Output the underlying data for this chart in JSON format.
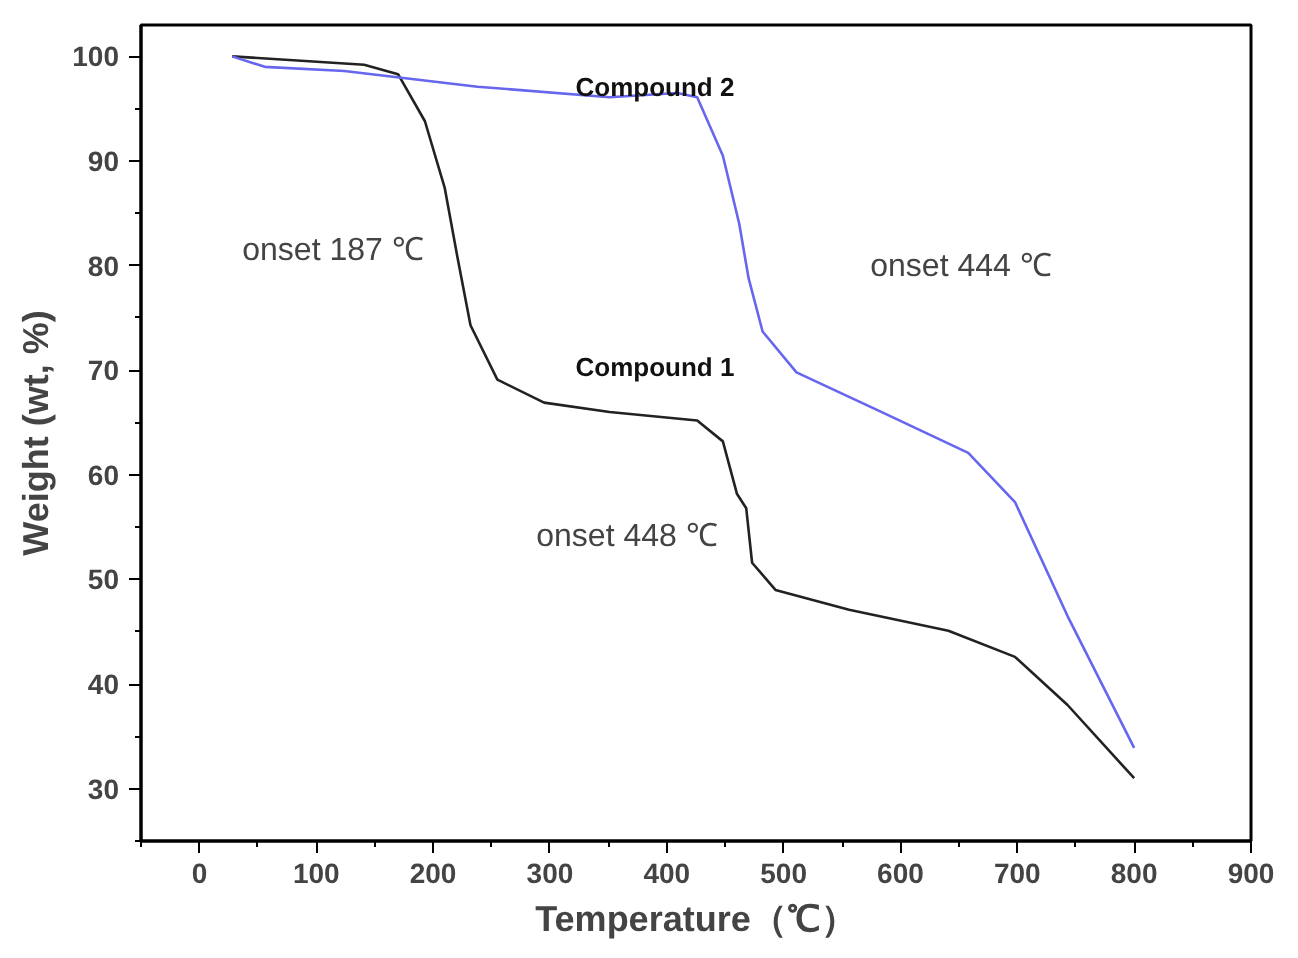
{
  "chart_data": {
    "type": "line",
    "xlabel": "Temperature（℃）",
    "ylabel": "Weight (wt, %)",
    "xlim": [
      -50,
      900
    ],
    "xticks": [
      0,
      100,
      200,
      300,
      400,
      500,
      600,
      700,
      800,
      900
    ],
    "ylim": [
      25,
      103
    ],
    "yticks": [
      30,
      40,
      50,
      60,
      70,
      80,
      90,
      100
    ],
    "grid": false,
    "marker": "none",
    "line_style": "solid",
    "series": [
      {
        "name": "Compound 1",
        "color": "#222222",
        "x": [
          28,
          141,
          170,
          193,
          210,
          221,
          232,
          255,
          295,
          351,
          426,
          448,
          460,
          468,
          473,
          493,
          556,
          641,
          698,
          743,
          800
        ],
        "values": [
          100,
          99.2,
          98.3,
          93.8,
          87.4,
          80.7,
          74.3,
          69.1,
          66.9,
          66,
          65.2,
          63.2,
          58.2,
          56.8,
          51.6,
          49,
          47.1,
          45.1,
          42.6,
          38,
          31
        ]
      },
      {
        "name": "Compound 2",
        "color": "#6666ee",
        "x": [
          28,
          56,
          124,
          238,
          351,
          409,
          426,
          448,
          462,
          470,
          482,
          511,
          584,
          658,
          698,
          743,
          800
        ],
        "values": [
          100,
          99,
          98.6,
          97.1,
          96.1,
          96.5,
          96.1,
          90.5,
          84,
          78.8,
          73.7,
          69.8,
          66,
          62.1,
          57.4,
          46.5,
          33.9
        ]
      }
    ],
    "annotations": [
      "onset 187 ℃",
      "onset 444 ℃",
      "onset 448 ℃"
    ]
  }
}
